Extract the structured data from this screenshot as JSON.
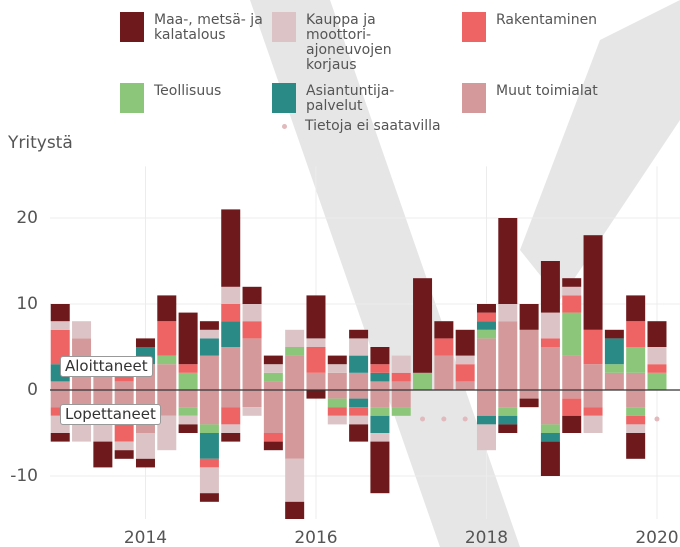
{
  "chart_data": {
    "type": "stacked-bar",
    "y_label": "Yritystä",
    "annotations": [
      "Aloittaneet",
      "Lopettaneet"
    ],
    "x": [
      2013,
      2013.25,
      2013.5,
      2013.75,
      2014,
      2014.25,
      2014.5,
      2014.75,
      2015,
      2015.25,
      2015.5,
      2015.75,
      2016,
      2016.25,
      2016.5,
      2016.75,
      2017,
      2017.25,
      2017.5,
      2017.75,
      2018,
      2018.25,
      2018.5,
      2018.75,
      2019,
      2019.25,
      2019.5,
      2019.75,
      2020
    ],
    "xlim": [
      2012.88,
      2020.27
    ],
    "xticks": [
      2014,
      2016,
      2018,
      2020
    ],
    "ylim": [
      -15,
      26
    ],
    "yticks": [
      -10,
      0,
      10,
      20
    ],
    "grid": true,
    "series": [
      {
        "name": "Maa-, metsä- ja kalatalous",
        "color": "#6e1a1d",
        "values": [
          2,
          0,
          0,
          0,
          1,
          3,
          6,
          1,
          9,
          2,
          1,
          0,
          5,
          1,
          1,
          2,
          0,
          11,
          2,
          3,
          1,
          10,
          3,
          6,
          1,
          11,
          1,
          3,
          3
        ],
        "negative_values": [
          -1,
          0,
          -3,
          -1,
          -1,
          0,
          -1,
          -1,
          -1,
          0,
          -1,
          -2,
          -1,
          0,
          -2,
          -6,
          0,
          null,
          null,
          null,
          0,
          -1,
          -1,
          -4,
          -2,
          0,
          0,
          -3,
          null
        ]
      },
      {
        "name": "Kauppa ja moottori-ajoneuvojen korjaus",
        "color": "#dcc4c6",
        "values": [
          1,
          2,
          1,
          0,
          0,
          0,
          0,
          1,
          2,
          2,
          1,
          2,
          1,
          1,
          2,
          0,
          2,
          0,
          0,
          1,
          0,
          2,
          0,
          3,
          1,
          0,
          0,
          0,
          2
        ],
        "negative_values": [
          -2,
          -2,
          -2,
          -1,
          -3,
          -4,
          -1,
          -3,
          -1,
          -1,
          0,
          -5,
          0,
          -1,
          -1,
          -1,
          0,
          null,
          null,
          null,
          -3,
          0,
          0,
          0,
          0,
          -2,
          0,
          -1,
          null
        ]
      },
      {
        "name": "Rakentaminen",
        "color": "#ee6464",
        "values": [
          4,
          0,
          0,
          1,
          0,
          4,
          1,
          0,
          2,
          2,
          0,
          0,
          3,
          0,
          0,
          1,
          1,
          0,
          2,
          2,
          1,
          0,
          0,
          1,
          2,
          4,
          0,
          3,
          1
        ],
        "negative_values": [
          -1,
          0,
          0,
          -2,
          0,
          0,
          0,
          -1,
          -2,
          0,
          -1,
          0,
          0,
          -1,
          -1,
          0,
          0,
          null,
          null,
          null,
          0,
          0,
          0,
          0,
          -2,
          -1,
          0,
          -1,
          null
        ]
      },
      {
        "name": "Teollisuus",
        "color": "#8cc67a",
        "values": [
          0,
          0,
          0,
          0,
          0,
          1,
          2,
          0,
          0,
          0,
          1,
          1,
          0,
          0,
          0,
          0,
          0,
          2,
          0,
          0,
          1,
          0,
          0,
          0,
          5,
          0,
          1,
          3,
          2
        ],
        "negative_values": [
          0,
          0,
          0,
          0,
          0,
          0,
          -1,
          -1,
          0,
          0,
          0,
          0,
          0,
          -1,
          0,
          -1,
          -1,
          null,
          null,
          null,
          0,
          -1,
          0,
          -1,
          0,
          0,
          0,
          -1,
          null
        ]
      },
      {
        "name": "Asiantuntija-palvelut",
        "color": "#2a8a86",
        "values": [
          2,
          0,
          0,
          0,
          2,
          0,
          0,
          2,
          3,
          0,
          0,
          0,
          0,
          0,
          2,
          1,
          0,
          0,
          0,
          0,
          1,
          0,
          0,
          0,
          0,
          0,
          3,
          0,
          0
        ],
        "negative_values": [
          0,
          0,
          0,
          0,
          0,
          0,
          0,
          -3,
          0,
          0,
          0,
          0,
          0,
          0,
          -1,
          -2,
          0,
          null,
          null,
          null,
          -1,
          -1,
          0,
          -1,
          0,
          0,
          0,
          0,
          null
        ]
      },
      {
        "name": "Muut toimialat",
        "color": "#d49a9b",
        "values": [
          1,
          6,
          2,
          1,
          3,
          3,
          0,
          4,
          5,
          6,
          1,
          4,
          2,
          2,
          2,
          1,
          1,
          0,
          4,
          1,
          6,
          8,
          7,
          5,
          4,
          3,
          2,
          2,
          0
        ],
        "negative_values": [
          -2,
          -4,
          -4,
          -4,
          -5,
          -3,
          -2,
          -4,
          -2,
          -2,
          -5,
          -8,
          0,
          -1,
          -1,
          -2,
          -2,
          null,
          null,
          null,
          -3,
          -2,
          -1,
          -4,
          -1,
          -2,
          0,
          -2,
          null
        ]
      }
    ],
    "no_data": {
      "name": "Tietoja ei saatavilla",
      "color": "#e2b9bc",
      "x": [
        2017.25,
        2017.5,
        2017.75,
        2020
      ]
    }
  }
}
